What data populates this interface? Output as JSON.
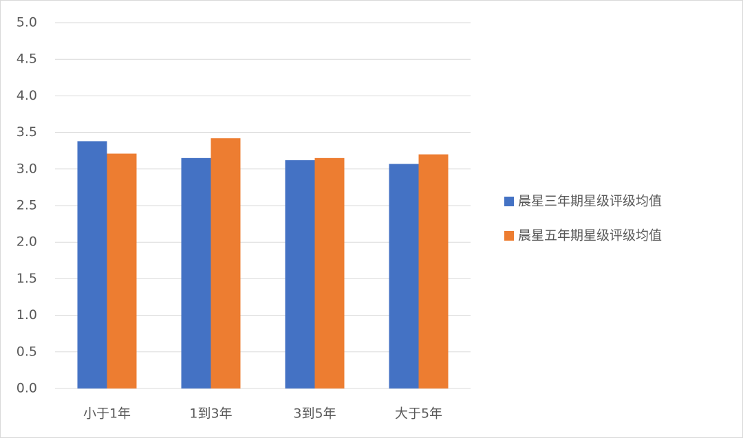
{
  "chart_data": {
    "type": "bar",
    "categories": [
      "小于1年",
      "1到3年",
      "3到5年",
      "大于5年"
    ],
    "series": [
      {
        "name": "晨星三年期星级评级均值",
        "color": "#4472c4",
        "values": [
          3.38,
          3.15,
          3.12,
          3.07
        ]
      },
      {
        "name": "晨星五年期星级评级均值",
        "color": "#ed7d31",
        "values": [
          3.21,
          3.42,
          3.15,
          3.2
        ]
      }
    ],
    "ylim": [
      0,
      5
    ],
    "yticks": [
      {
        "value": 0,
        "label": "0.0"
      },
      {
        "value": 0.5,
        "label": "0.5"
      },
      {
        "value": 1,
        "label": "1.0"
      },
      {
        "value": 1.5,
        "label": "1.5"
      },
      {
        "value": 2,
        "label": "2.0"
      },
      {
        "value": 2.5,
        "label": "2.5"
      },
      {
        "value": 3,
        "label": "3.0"
      },
      {
        "value": 3.5,
        "label": "3.5"
      },
      {
        "value": 4,
        "label": "4.0"
      },
      {
        "value": 4.5,
        "label": "4.5"
      },
      {
        "value": 5,
        "label": "5.0"
      }
    ],
    "grid": true,
    "legend": "right"
  }
}
